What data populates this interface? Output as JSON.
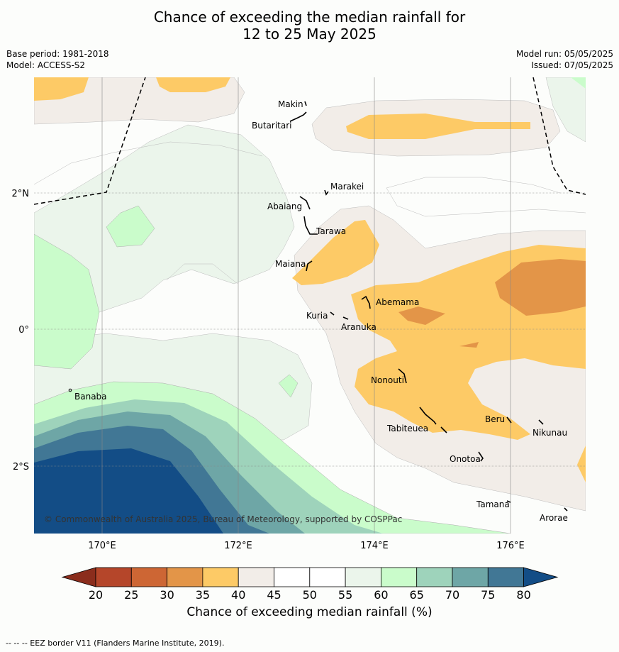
{
  "title": {
    "line1": "Chance of exceeding the median rainfall for",
    "line2": "12 to 25 May 2025"
  },
  "meta": {
    "base_period": "Base period: 1981-2018",
    "model": "Model: ACCESS-S2",
    "model_run": "Model run: 05/05/2025",
    "issued": "Issued: 07/05/2025"
  },
  "map": {
    "lat_labels": [
      "2°N",
      "0°",
      "2°S"
    ],
    "lon_labels": [
      "170°E",
      "172°E",
      "174°E",
      "176°E"
    ],
    "places": [
      "Makin",
      "Butaritari",
      "Marakei",
      "Abaiang",
      "Tarawa",
      "Maiana",
      "Abemama",
      "Kuria",
      "Aranuka",
      "Nonouti",
      "Banaba",
      "Tabiteuea",
      "Beru",
      "Nikunau",
      "Onotoa",
      "Tamana",
      "Arorae"
    ],
    "copyright": "© Commonwealth of Australia 2025, Bureau of Meteorology, supported by COSPPac"
  },
  "colorbar": {
    "ticks": [
      "20",
      "25",
      "30",
      "35",
      "40",
      "45",
      "50",
      "55",
      "60",
      "65",
      "70",
      "75",
      "80"
    ],
    "label": "Chance of exceeding median rainfall (%)",
    "colors": [
      "#8b2d1c",
      "#b5462a",
      "#cd6634",
      "#e39548",
      "#fdca66",
      "#f2ede8",
      "#ffffff",
      "#ffffff",
      "#ebf5eb",
      "#cafccb",
      "#9ed3bb",
      "#6ea6a6",
      "#417795",
      "#134d86"
    ]
  },
  "footnote": "--  --  -- EEZ border V11 (Flanders Marine Institute, 2019)."
}
